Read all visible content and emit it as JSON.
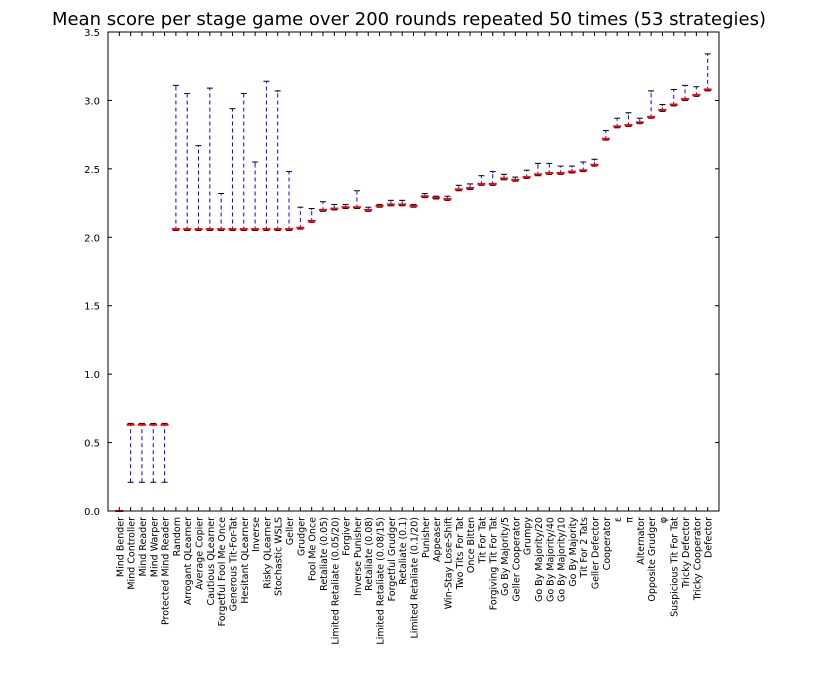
{
  "chart_data": {
    "type": "boxplot",
    "title": "Mean score per stage game over 200 rounds repeated 50 times (53 strategies)",
    "xlabel": "",
    "ylabel": "",
    "ylim": [
      0.0,
      3.5
    ],
    "yticks": [
      "0.0",
      "0.5",
      "1.0",
      "1.5",
      "2.0",
      "2.5",
      "3.0",
      "3.5"
    ],
    "colors": {
      "whisker": "#0000ff",
      "median": "#ff0000",
      "cap": "#000000",
      "axis": "#000000"
    },
    "boxes": [
      {
        "name": "Mind Bender",
        "min": 0.0,
        "q1": 0.0,
        "median": 0.0,
        "q3": 0.0,
        "max": 0.0
      },
      {
        "name": "Mind Controller",
        "min": 0.21,
        "q1": 0.21,
        "median": 0.63,
        "q3": 0.63,
        "max": 0.64
      },
      {
        "name": "Mind Reader",
        "min": 0.21,
        "q1": 0.21,
        "median": 0.63,
        "q3": 0.63,
        "max": 0.64
      },
      {
        "name": "Mind Warper",
        "min": 0.21,
        "q1": 0.21,
        "median": 0.63,
        "q3": 0.63,
        "max": 0.64
      },
      {
        "name": "Protected Mind Reader",
        "min": 0.21,
        "q1": 0.21,
        "median": 0.63,
        "q3": 0.63,
        "max": 0.64
      },
      {
        "name": "Random",
        "min": 2.05,
        "q1": 2.05,
        "median": 2.06,
        "q3": 3.1,
        "max": 3.11
      },
      {
        "name": "Arrogant QLearner",
        "min": 2.05,
        "q1": 2.05,
        "median": 2.06,
        "q3": 3.04,
        "max": 3.05
      },
      {
        "name": "Average Copier",
        "min": 2.05,
        "q1": 2.05,
        "median": 2.06,
        "q3": 2.66,
        "max": 2.67
      },
      {
        "name": "Cautious QLearner",
        "min": 2.05,
        "q1": 2.05,
        "median": 2.06,
        "q3": 3.08,
        "max": 3.09
      },
      {
        "name": "Forgetful Fool Me Once",
        "min": 2.05,
        "q1": 2.05,
        "median": 2.06,
        "q3": 2.31,
        "max": 2.32
      },
      {
        "name": "Generous Tit-For-Tat",
        "min": 2.05,
        "q1": 2.05,
        "median": 2.06,
        "q3": 2.93,
        "max": 2.94
      },
      {
        "name": "Hesitant QLearner",
        "min": 2.05,
        "q1": 2.05,
        "median": 2.06,
        "q3": 3.04,
        "max": 3.05
      },
      {
        "name": "Inverse",
        "min": 2.05,
        "q1": 2.05,
        "median": 2.06,
        "q3": 2.54,
        "max": 2.55
      },
      {
        "name": "Risky QLearner",
        "min": 2.05,
        "q1": 2.05,
        "median": 2.06,
        "q3": 3.13,
        "max": 3.14
      },
      {
        "name": "Stochastic WSLS",
        "min": 2.05,
        "q1": 2.05,
        "median": 2.06,
        "q3": 3.06,
        "max": 3.07
      },
      {
        "name": "Geller",
        "min": 2.05,
        "q1": 2.05,
        "median": 2.06,
        "q3": 2.47,
        "max": 2.48
      },
      {
        "name": "Grudger",
        "min": 2.06,
        "q1": 2.06,
        "median": 2.07,
        "q3": 2.21,
        "max": 2.22
      },
      {
        "name": "Fool Me Once",
        "min": 2.11,
        "q1": 2.11,
        "median": 2.12,
        "q3": 2.2,
        "max": 2.21
      },
      {
        "name": "Retaliate (0.05)",
        "min": 2.19,
        "q1": 2.19,
        "median": 2.2,
        "q3": 2.25,
        "max": 2.26
      },
      {
        "name": "Limited Retaliate (0.05/20)",
        "min": 2.2,
        "q1": 2.2,
        "median": 2.21,
        "q3": 2.23,
        "max": 2.24
      },
      {
        "name": "Forgiver",
        "min": 2.21,
        "q1": 2.21,
        "median": 2.22,
        "q3": 2.23,
        "max": 2.24
      },
      {
        "name": "Inverse Punisher",
        "min": 2.21,
        "q1": 2.21,
        "median": 2.22,
        "q3": 2.33,
        "max": 2.34
      },
      {
        "name": "Retaliate (0.08)",
        "min": 2.19,
        "q1": 2.19,
        "median": 2.2,
        "q3": 2.21,
        "max": 2.22
      },
      {
        "name": "Limited Retaliate (0.08/15)",
        "min": 2.22,
        "q1": 2.22,
        "median": 2.23,
        "q3": 2.23,
        "max": 2.24
      },
      {
        "name": "Forgetful Grudger",
        "min": 2.23,
        "q1": 2.23,
        "median": 2.24,
        "q3": 2.26,
        "max": 2.27
      },
      {
        "name": "Retaliate (0.1)",
        "min": 2.23,
        "q1": 2.23,
        "median": 2.24,
        "q3": 2.26,
        "max": 2.27
      },
      {
        "name": "Limited Retaliate (0.1/20)",
        "min": 2.22,
        "q1": 2.22,
        "median": 2.23,
        "q3": 2.23,
        "max": 2.24
      },
      {
        "name": "Punisher",
        "min": 2.29,
        "q1": 2.29,
        "median": 2.3,
        "q3": 2.31,
        "max": 2.32
      },
      {
        "name": "Appeaser",
        "min": 2.28,
        "q1": 2.28,
        "median": 2.29,
        "q3": 2.29,
        "max": 2.3
      },
      {
        "name": "Win-Stay Lose-Shift",
        "min": 2.27,
        "q1": 2.27,
        "median": 2.28,
        "q3": 2.29,
        "max": 2.3
      },
      {
        "name": "Two Tits For Tat",
        "min": 2.34,
        "q1": 2.34,
        "median": 2.35,
        "q3": 2.37,
        "max": 2.38
      },
      {
        "name": "Once Bitten",
        "min": 2.35,
        "q1": 2.35,
        "median": 2.36,
        "q3": 2.38,
        "max": 2.39
      },
      {
        "name": "Tit For Tat",
        "min": 2.38,
        "q1": 2.38,
        "median": 2.39,
        "q3": 2.44,
        "max": 2.45
      },
      {
        "name": "Forgiving Tit For Tat",
        "min": 2.38,
        "q1": 2.38,
        "median": 2.39,
        "q3": 2.47,
        "max": 2.48
      },
      {
        "name": "Go By Majority/5",
        "min": 2.42,
        "q1": 2.42,
        "median": 2.43,
        "q3": 2.45,
        "max": 2.46
      },
      {
        "name": "Geller Cooperator",
        "min": 2.41,
        "q1": 2.41,
        "median": 2.42,
        "q3": 2.43,
        "max": 2.44
      },
      {
        "name": "Grumpy",
        "min": 2.43,
        "q1": 2.43,
        "median": 2.44,
        "q3": 2.48,
        "max": 2.49
      },
      {
        "name": "Go By Majority/20",
        "min": 2.45,
        "q1": 2.45,
        "median": 2.46,
        "q3": 2.53,
        "max": 2.54
      },
      {
        "name": "Go By Majority/40",
        "min": 2.46,
        "q1": 2.46,
        "median": 2.47,
        "q3": 2.53,
        "max": 2.54
      },
      {
        "name": "Go By Majority/10",
        "min": 2.46,
        "q1": 2.46,
        "median": 2.47,
        "q3": 2.51,
        "max": 2.52
      },
      {
        "name": "Go By Majority",
        "min": 2.47,
        "q1": 2.47,
        "median": 2.48,
        "q3": 2.51,
        "max": 2.52
      },
      {
        "name": "Tit For 2 Tats",
        "min": 2.48,
        "q1": 2.48,
        "median": 2.49,
        "q3": 2.54,
        "max": 2.55
      },
      {
        "name": "Geller Defector",
        "min": 2.52,
        "q1": 2.52,
        "median": 2.53,
        "q3": 2.56,
        "max": 2.57
      },
      {
        "name": "Cooperator",
        "min": 2.71,
        "q1": 2.71,
        "median": 2.72,
        "q3": 2.77,
        "max": 2.78
      },
      {
        "name": "ε",
        "min": 2.8,
        "q1": 2.8,
        "median": 2.81,
        "q3": 2.86,
        "max": 2.87
      },
      {
        "name": "π",
        "min": 2.81,
        "q1": 2.81,
        "median": 2.82,
        "q3": 2.9,
        "max": 2.91
      },
      {
        "name": "Alternator",
        "min": 2.83,
        "q1": 2.83,
        "median": 2.84,
        "q3": 2.86,
        "max": 2.87
      },
      {
        "name": "Opposite Grudger",
        "min": 2.87,
        "q1": 2.87,
        "median": 2.88,
        "q3": 3.06,
        "max": 3.07
      },
      {
        "name": "φ",
        "min": 2.92,
        "q1": 2.92,
        "median": 2.93,
        "q3": 2.96,
        "max": 2.97
      },
      {
        "name": "Suspicious Tit For Tat",
        "min": 2.96,
        "q1": 2.96,
        "median": 2.97,
        "q3": 3.07,
        "max": 3.08
      },
      {
        "name": "Tricky Defector",
        "min": 3.0,
        "q1": 3.0,
        "median": 3.01,
        "q3": 3.1,
        "max": 3.11
      },
      {
        "name": "Tricky Cooperator",
        "min": 3.03,
        "q1": 3.03,
        "median": 3.04,
        "q3": 3.09,
        "max": 3.1
      },
      {
        "name": "Defector",
        "min": 3.07,
        "q1": 3.07,
        "median": 3.08,
        "q3": 3.33,
        "max": 3.34
      }
    ]
  }
}
